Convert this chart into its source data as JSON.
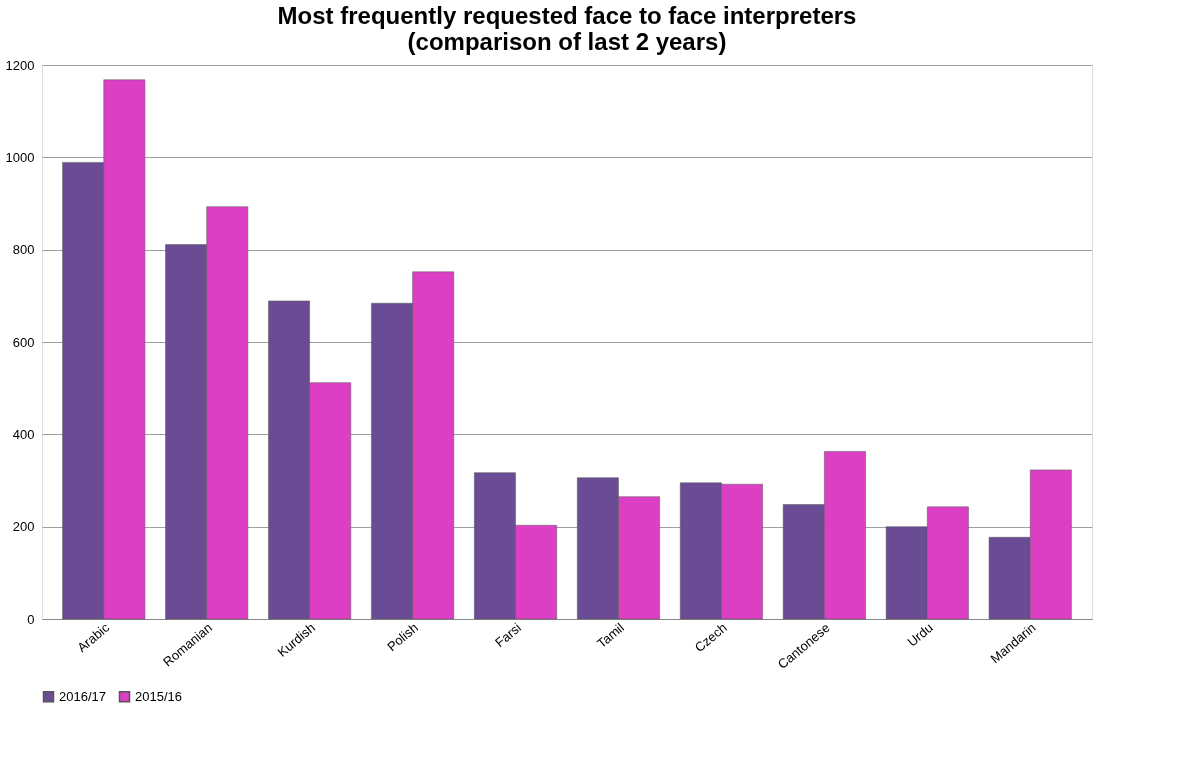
{
  "chart_data": {
    "type": "bar",
    "title": "Most frequently requested face to face interpreters\n(comparison of last 2 years)",
    "categories": [
      "Arabic",
      "Romanian",
      "Kurdish",
      "Polish",
      "Farsi",
      "Tamil",
      "Czech",
      "Cantonese",
      "Urdu",
      "Mandarin"
    ],
    "series": [
      {
        "name": "2016/17",
        "color": "#6a4c94",
        "values": [
          989,
          811,
          689,
          684,
          317,
          306,
          295,
          248,
          200,
          177
        ]
      },
      {
        "name": "2015/16",
        "color": "#dc3fc3",
        "values": [
          1168,
          893,
          512,
          752,
          203,
          265,
          292,
          363,
          243,
          323
        ]
      }
    ],
    "ylim": [
      0,
      1200
    ],
    "yticks": [
      0,
      200,
      400,
      600,
      800,
      1000,
      1200
    ],
    "grid": "y",
    "legend": "bottom"
  }
}
